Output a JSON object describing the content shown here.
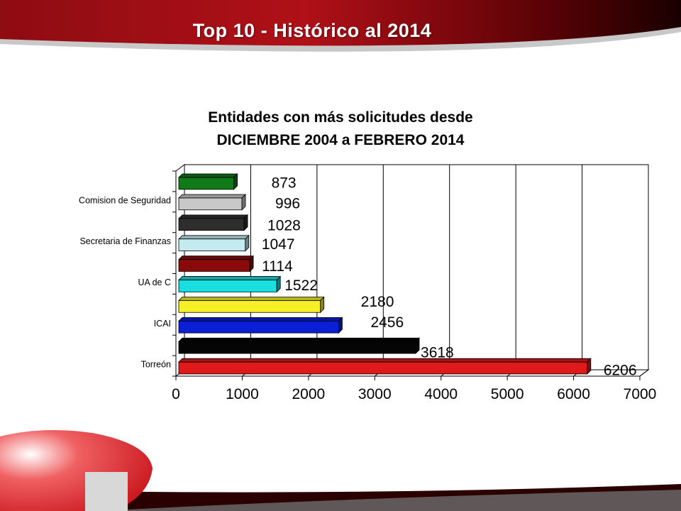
{
  "slide": {
    "title": "Top 10 - Histórico  al 2014"
  },
  "colors": {
    "header_dark": "#3a0000",
    "header_red": "#b01018",
    "corner_red": "#e8262c"
  },
  "chart_data": {
    "type": "bar",
    "orientation": "horizontal",
    "title_lines": [
      "Entidades con más solicitudes desde",
      "DICIEMBRE 2004  a  FEBRERO 2014"
    ],
    "xlim": [
      0,
      7000
    ],
    "x_ticks": [
      "0",
      "1000",
      "2000",
      "3000",
      "4000",
      "5000",
      "6000",
      "7000"
    ],
    "category_labels": [
      "Comision de Seguridad",
      "Secretaria de Finanzas",
      "UA de C",
      "ICAI",
      "Torreón"
    ],
    "grid": "vertical",
    "bars": [
      {
        "value": 873,
        "color": "#0f7a17"
      },
      {
        "value": 996,
        "color": "#c8c8c8"
      },
      {
        "value": 1028,
        "color": "#2e2e2e"
      },
      {
        "value": 1047,
        "color": "#c4ecf0"
      },
      {
        "value": 1114,
        "color": "#8a0a0a"
      },
      {
        "value": 1522,
        "color": "#18e0e0"
      },
      {
        "value": 2180,
        "color": "#f7f026"
      },
      {
        "value": 2456,
        "color": "#0a1fd6"
      },
      {
        "value": 3618,
        "color": "#050505"
      },
      {
        "value": 6206,
        "color": "#e01a1a"
      }
    ]
  }
}
